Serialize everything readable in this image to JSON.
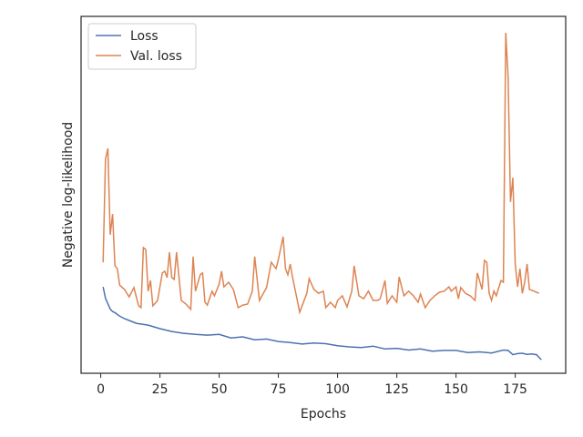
{
  "chart_data": {
    "type": "line",
    "xlabel": "Epochs",
    "ylabel": "Negative log-likelihood",
    "xlim": [
      -8.3,
      196.3
    ],
    "ylim": [
      0,
      100
    ],
    "xticks": [
      0,
      25,
      50,
      75,
      100,
      125,
      150,
      175
    ],
    "legend": "upper left",
    "grid": false,
    "series": [
      {
        "name": "Loss",
        "color": "#4c72b0",
        "x": [
          1,
          2,
          3,
          4,
          5,
          6,
          8,
          10,
          12,
          15,
          20,
          25,
          30,
          35,
          40,
          45,
          50,
          55,
          60,
          65,
          70,
          75,
          80,
          85,
          90,
          95,
          100,
          105,
          110,
          115,
          120,
          125,
          130,
          135,
          140,
          145,
          150,
          155,
          160,
          165,
          170,
          172,
          174,
          176,
          178,
          180,
          182,
          184,
          185,
          186
        ],
        "values": [
          24.2,
          21,
          19.5,
          18,
          17.3,
          17,
          16,
          15.3,
          14.8,
          14,
          13.5,
          12.5,
          11.7,
          11.2,
          10.9,
          10.7,
          10.9,
          9.9,
          10.2,
          9.4,
          9.6,
          8.9,
          8.6,
          8.2,
          8.5,
          8.3,
          7.7,
          7.4,
          7.2,
          7.6,
          6.8,
          7.0,
          6.5,
          6.8,
          6.2,
          6.4,
          6.4,
          5.8,
          6.0,
          5.7,
          6.5,
          6.4,
          5.2,
          5.5,
          5.6,
          5.3,
          5.4,
          5.2,
          4.5,
          3.8
        ]
      },
      {
        "name": "Val. loss",
        "color": "#dd8452",
        "x": [
          1,
          2,
          3,
          4,
          5,
          6,
          7,
          8,
          10,
          12,
          14,
          16,
          17,
          18,
          19,
          20,
          21,
          22,
          24,
          26,
          27,
          28,
          29,
          30,
          31,
          32,
          34,
          36,
          38,
          39,
          40,
          42,
          43,
          44,
          45,
          47,
          48,
          50,
          51,
          52,
          54,
          56,
          58,
          60,
          62,
          64,
          65,
          67,
          70,
          72,
          74,
          75,
          77,
          78,
          79,
          80,
          81,
          83,
          84,
          87,
          88,
          90,
          92,
          94,
          95,
          97,
          99,
          100,
          102,
          104,
          106,
          107,
          109,
          111,
          113,
          115,
          117,
          118,
          120,
          121,
          123,
          125,
          126,
          128,
          130,
          132,
          134,
          135,
          137,
          139,
          141,
          143,
          145,
          147,
          148,
          150,
          151,
          152,
          154,
          156,
          158,
          159,
          161,
          162,
          163,
          164,
          165,
          166,
          167,
          169,
          170,
          171,
          172,
          173,
          174,
          175,
          176,
          177,
          178,
          179,
          180,
          181,
          183,
          185
        ],
        "values": [
          31.1,
          60.0,
          63.0,
          38.8,
          44.6,
          30.1,
          29.3,
          24.7,
          23.5,
          21.4,
          24.0,
          18.9,
          18.4,
          35.2,
          34.7,
          23.0,
          26.0,
          18.9,
          20.4,
          28.1,
          28.6,
          26.8,
          33.9,
          26.8,
          26.3,
          33.9,
          20.4,
          19.4,
          17.9,
          32.7,
          23.0,
          27.6,
          28.1,
          19.9,
          19.1,
          23.0,
          21.7,
          25.0,
          28.6,
          24.2,
          25.5,
          23.5,
          18.4,
          19.1,
          19.4,
          23.0,
          32.7,
          20.4,
          24.0,
          31.1,
          29.3,
          31.9,
          38.3,
          29.3,
          27.6,
          30.6,
          26.8,
          20.4,
          17.1,
          22.4,
          26.5,
          23.5,
          22.4,
          23.0,
          18.4,
          19.9,
          18.4,
          20.4,
          21.7,
          18.6,
          23.0,
          30.1,
          21.7,
          20.9,
          23.0,
          20.4,
          20.4,
          20.9,
          26.0,
          19.6,
          21.7,
          19.9,
          27.0,
          21.7,
          23.0,
          21.7,
          19.9,
          22.2,
          18.4,
          20.4,
          21.7,
          22.7,
          23.0,
          24.2,
          23.0,
          24.2,
          20.9,
          24.0,
          22.4,
          21.7,
          20.4,
          28.1,
          23.5,
          31.6,
          31.1,
          22.4,
          20.4,
          23.0,
          21.7,
          26.0,
          25.5,
          95.4,
          82.9,
          48.0,
          54.8,
          30.6,
          24.2,
          29.3,
          22.4,
          25.5,
          30.6,
          23.5,
          23.0,
          22.4
        ]
      }
    ]
  }
}
